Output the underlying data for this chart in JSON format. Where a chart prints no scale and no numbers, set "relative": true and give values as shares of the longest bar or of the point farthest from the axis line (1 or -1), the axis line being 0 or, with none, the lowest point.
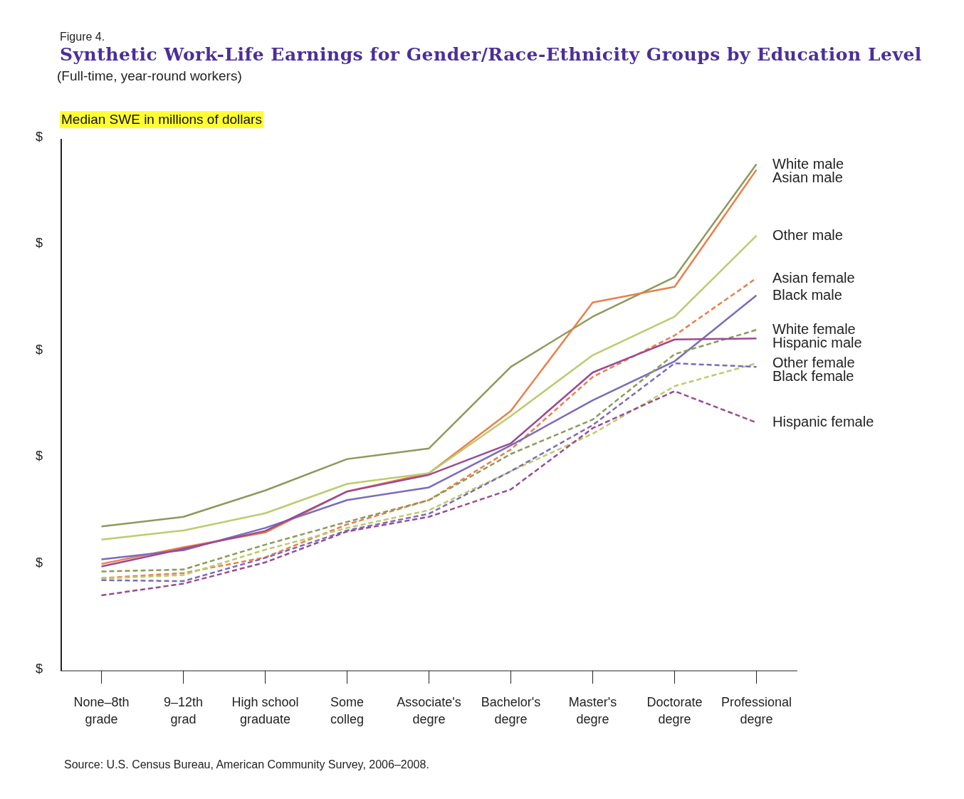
{
  "chart_data": {
    "type": "line",
    "title": "Synthetic Work-Life Earnings for Gender/Race-Ethnicity Groups by Education Level",
    "subtitle": "(Full-time, year-round workers)",
    "ylabel": "Median SWE in millions of dollars",
    "relative": true,
    "grid": false,
    "legend": false,
    "marker": "none",
    "categories": [
      "None–8th grade",
      "9–12th grad",
      "High school graduate",
      "Some colleg",
      "Associate's degre",
      "Bachelor's degre",
      "Master's degre",
      "Doctorate degre",
      "Professional degre"
    ],
    "annotations": [
      "Figure 4.",
      "$",
      "$",
      "$",
      "$",
      "$",
      "$",
      "Source: U.S. Census Bureau, American Community Survey, 2006–2008."
    ],
    "series": [
      {
        "name": "White male",
        "color": "#8c9a5b",
        "line_style": "solid",
        "values": [
          0.285,
          0.304,
          0.356,
          0.418,
          0.439,
          0.6,
          0.699,
          0.777,
          1
        ]
      },
      {
        "name": "Asian male",
        "color": "#e8804a",
        "line_style": "solid",
        "values": [
          0.211,
          0.244,
          0.273,
          0.354,
          0.39,
          0.513,
          0.727,
          0.758,
          0.989
        ]
      },
      {
        "name": "Other male",
        "color": "#bccb6e",
        "line_style": "solid",
        "values": [
          0.259,
          0.277,
          0.311,
          0.369,
          0.39,
          0.503,
          0.623,
          0.699,
          0.859
        ]
      },
      {
        "name": "Asian female",
        "color": "#e8804a",
        "line_style": "dashed",
        "values": [
          0.183,
          0.193,
          0.224,
          0.289,
          0.337,
          0.437,
          0.58,
          0.662,
          0.775
        ]
      },
      {
        "name": "Black male",
        "color": "#7b6bb8",
        "line_style": "solid",
        "values": [
          0.22,
          0.238,
          0.282,
          0.337,
          0.362,
          0.445,
          0.534,
          0.611,
          0.741
        ]
      },
      {
        "name": "White female",
        "color": "#8c9a5b",
        "line_style": "dashed",
        "values": [
          0.196,
          0.2,
          0.249,
          0.294,
          0.337,
          0.428,
          0.496,
          0.625,
          0.673
        ]
      },
      {
        "name": "Hispanic male",
        "color": "#9b4a92",
        "line_style": "solid",
        "values": [
          0.206,
          0.241,
          0.276,
          0.354,
          0.387,
          0.449,
          0.589,
          0.654,
          0.656
        ]
      },
      {
        "name": "Other female",
        "color": "#bccb6e",
        "line_style": "dashed",
        "values": [
          0.182,
          0.189,
          0.239,
          0.282,
          0.317,
          0.394,
          0.468,
          0.562,
          0.607
        ]
      },
      {
        "name": "Black female",
        "color": "#7b6bb8",
        "line_style": "dashed",
        "values": [
          0.179,
          0.177,
          0.223,
          0.277,
          0.31,
          0.394,
          0.485,
          0.607,
          0.6
        ]
      },
      {
        "name": "Hispanic female",
        "color": "#9b4a92",
        "line_style": "dashed",
        "values": [
          0.149,
          0.172,
          0.214,
          0.275,
          0.304,
          0.358,
          0.479,
          0.552,
          0.49
        ]
      }
    ]
  }
}
